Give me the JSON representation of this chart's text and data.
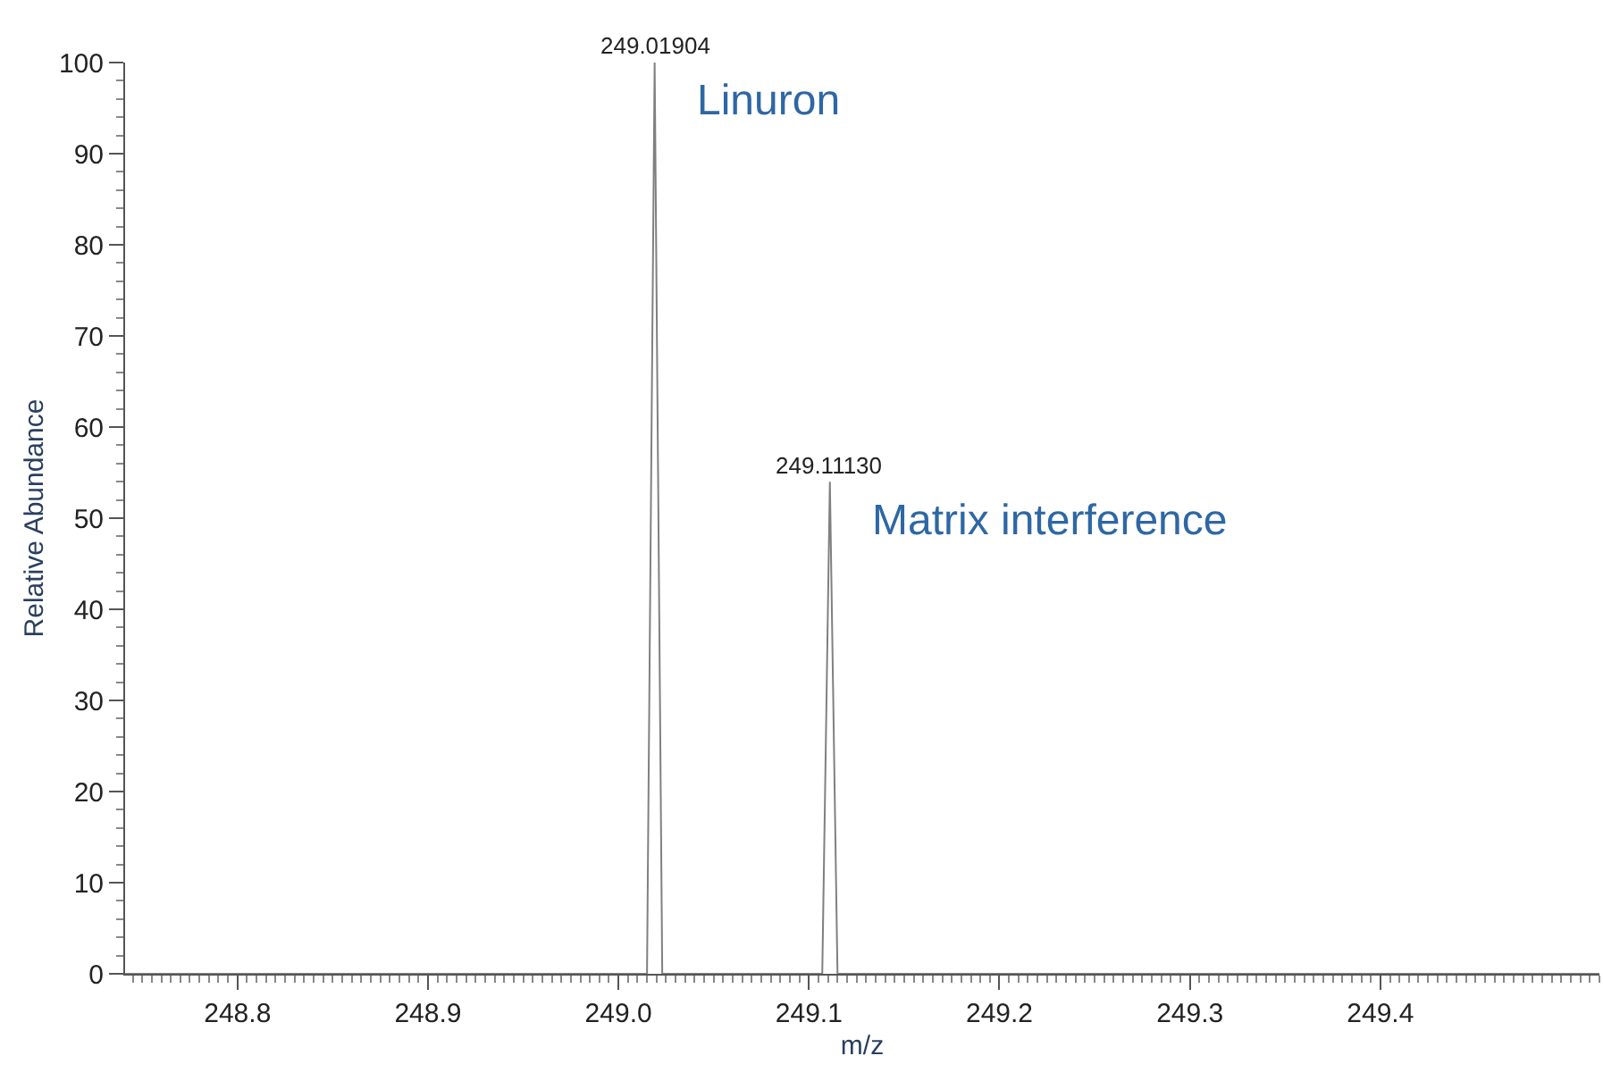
{
  "chart_data": {
    "type": "line",
    "xlabel": "m/z",
    "ylabel": "Relative Abundance",
    "xlim": [
      248.741,
      249.515
    ],
    "xticks": [
      248.8,
      248.9,
      {
        "value": 249.0,
        "label": "249.0"
      },
      249.1,
      249.2,
      249.3,
      249.4
    ],
    "ylim": [
      0,
      100
    ],
    "yticks": [
      0,
      10,
      20,
      30,
      40,
      50,
      60,
      70,
      80,
      90,
      100
    ],
    "legend": false,
    "marker": "none",
    "line_style": "solid",
    "series": [
      {
        "color": "#808080",
        "x": [
          248.741,
          249.015,
          249.019,
          249.023,
          249.107,
          249.111,
          249.115,
          249.515
        ],
        "values": [
          0,
          0,
          100,
          0,
          0,
          54,
          0,
          0
        ]
      }
    ],
    "annotations": [
      {
        "text": "249.01904",
        "x": 249.019,
        "y": 100
      },
      {
        "text": "249.11130",
        "x": 249.111,
        "y": 54
      },
      "Linuron",
      "Matrix interference"
    ]
  }
}
